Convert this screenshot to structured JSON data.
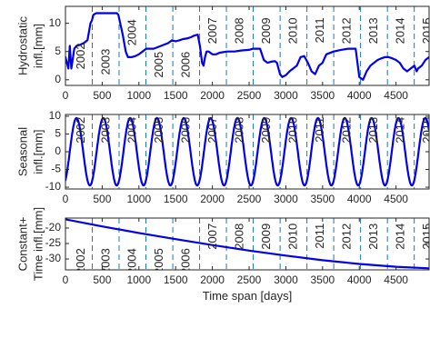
{
  "chart_data": [
    {
      "type": "line",
      "title": "",
      "xlabel": "",
      "ylabel_lines": [
        "Hydrostatic",
        "infl.[mm]"
      ],
      "xlim": [
        0,
        4950
      ],
      "ylim": [
        -1,
        13
      ],
      "xticks": [
        0,
        500,
        1000,
        1500,
        2000,
        2500,
        3000,
        3500,
        4000,
        4500
      ],
      "yticks": [
        0,
        5,
        10
      ],
      "grid": false,
      "year_dividers": [
        365,
        730,
        1095,
        1461,
        1826,
        2191,
        2556,
        2922,
        3287,
        3652,
        4017,
        4383,
        4748
      ],
      "year_labels": [
        {
          "text": "2002",
          "x": 215,
          "y_top": 6.5
        },
        {
          "text": "2003",
          "x": 560,
          "y_top": 5.5
        },
        {
          "text": "2004",
          "x": 915,
          "y_top": 10.7
        },
        {
          "text": "2005",
          "x": 1280,
          "y_top": 5.0
        },
        {
          "text": "2006",
          "x": 1645,
          "y_top": 5.0
        },
        {
          "text": "2007",
          "x": 2010,
          "y_top": 11.0
        },
        {
          "text": "2008",
          "x": 2375,
          "y_top": 11.0
        },
        {
          "text": "2009",
          "x": 2740,
          "y_top": 11.0
        },
        {
          "text": "2010",
          "x": 3105,
          "y_top": 11.0
        },
        {
          "text": "2011",
          "x": 3470,
          "y_top": 11.0
        },
        {
          "text": "2012",
          "x": 3835,
          "y_top": 11.0
        },
        {
          "text": "2013",
          "x": 4200,
          "y_top": 11.0
        },
        {
          "text": "2014",
          "x": 4565,
          "y_top": 11.0
        },
        {
          "text": "2015",
          "x": 4930,
          "y_top": 11.0
        }
      ],
      "series": [
        {
          "x": [
            0,
            40,
            60,
            80,
            120,
            150,
            200,
            250,
            300,
            340,
            360,
            380,
            420,
            450,
            470,
            700,
            720,
            780,
            820,
            850,
            900,
            950,
            1000,
            1100,
            1200,
            1300,
            1400,
            1450,
            1500,
            1550,
            1600,
            1650,
            1700,
            1750,
            1800,
            1830,
            1860,
            1880,
            1900,
            1920,
            1950,
            2000,
            2050,
            2100,
            2200,
            2300,
            2400,
            2500,
            2550,
            2650,
            2700,
            2750,
            2800,
            2850,
            2880,
            2900,
            2920,
            2950,
            3000,
            3050,
            3100,
            3150,
            3200,
            3250,
            3300,
            3350,
            3400,
            3450,
            3500,
            3550,
            3650,
            3750,
            3850,
            3950,
            4000,
            4050,
            4100,
            4150,
            4200,
            4250,
            4300,
            4350,
            4400,
            4450,
            4500,
            4550,
            4600,
            4650,
            4700,
            4750,
            4780,
            4800,
            4850,
            4900,
            4950
          ],
          "y": [
            4.0,
            2.0,
            6.0,
            2.0,
            5.5,
            6.0,
            6.2,
            6.5,
            7.0,
            10.0,
            10.5,
            11.5,
            11.8,
            11.8,
            11.8,
            11.8,
            11.5,
            8.0,
            5.0,
            4.0,
            4.0,
            4.2,
            4.5,
            5.5,
            5.5,
            6.0,
            6.5,
            7.0,
            6.8,
            7.0,
            7.2,
            7.3,
            7.5,
            7.8,
            8.0,
            6.0,
            3.0,
            2.5,
            4.0,
            5.0,
            5.0,
            4.5,
            4.5,
            4.8,
            5.0,
            5.0,
            5.2,
            5.3,
            5.5,
            5.5,
            3.5,
            3.0,
            3.2,
            3.3,
            3.0,
            2.0,
            1.0,
            0.5,
            0.8,
            1.5,
            2.0,
            2.5,
            4.0,
            4.2,
            3.0,
            1.5,
            1.0,
            2.5,
            3.0,
            4.5,
            5.0,
            5.3,
            5.5,
            5.5,
            0.5,
            0.0,
            1.5,
            2.5,
            3.0,
            3.5,
            3.8,
            4.0,
            4.0,
            3.8,
            3.5,
            3.0,
            2.0,
            1.5,
            2.0,
            2.5,
            1.5,
            2.0,
            2.5,
            3.5,
            4.0
          ]
        }
      ]
    },
    {
      "type": "line",
      "title": "",
      "xlabel": "",
      "ylabel_lines": [
        "Seasonal",
        "infl.[mm]"
      ],
      "xlim": [
        0,
        4950
      ],
      "ylim": [
        -10.5,
        10.5
      ],
      "xticks": [
        0,
        500,
        1000,
        1500,
        2000,
        2500,
        3000,
        3500,
        4000,
        4500
      ],
      "yticks": [
        -10,
        -5,
        0,
        5,
        10
      ],
      "grid": false,
      "year_dividers": [
        365,
        730,
        1095,
        1461,
        1826,
        2191,
        2556,
        2922,
        3287,
        3652,
        4017,
        4383,
        4748
      ],
      "year_labels": [
        {
          "text": "2002",
          "x": 215,
          "y_top": 9.8
        },
        {
          "text": "2003",
          "x": 560,
          "y_top": 9.8
        },
        {
          "text": "2004",
          "x": 915,
          "y_top": 9.8
        },
        {
          "text": "2005",
          "x": 1280,
          "y_top": 9.8
        },
        {
          "text": "2006",
          "x": 1645,
          "y_top": 9.8
        },
        {
          "text": "2007",
          "x": 2010,
          "y_top": 9.8
        },
        {
          "text": "2008",
          "x": 2375,
          "y_top": 9.8
        },
        {
          "text": "2009",
          "x": 2740,
          "y_top": 9.8
        },
        {
          "text": "2010",
          "x": 3105,
          "y_top": 9.8
        },
        {
          "text": "2011",
          "x": 3470,
          "y_top": 9.8
        },
        {
          "text": "2012",
          "x": 3835,
          "y_top": 9.8
        },
        {
          "text": "2013",
          "x": 4200,
          "y_top": 9.8
        },
        {
          "text": "2014",
          "x": 4565,
          "y_top": 9.8
        },
        {
          "text": "2015",
          "x": 4930,
          "y_top": 9.8
        }
      ],
      "series": [
        {
          "model": "sinusoid",
          "amplitude": 9.5,
          "period_days": 365.25,
          "peak_day": 150,
          "x_start": 0,
          "x_end": 4950
        }
      ]
    },
    {
      "type": "line",
      "title": "",
      "xlabel": "Time span [days]",
      "ylabel_lines": [
        "Constant+",
        "Time infl.[mm]"
      ],
      "xlim": [
        0,
        4950
      ],
      "ylim": [
        -33.5,
        -16.8
      ],
      "xticks": [
        0,
        500,
        1000,
        1500,
        2000,
        2500,
        3000,
        3500,
        4000,
        4500
      ],
      "yticks": [
        -30,
        -25,
        -20
      ],
      "grid": false,
      "year_dividers": [
        365,
        730,
        1095,
        1461,
        1826,
        2191,
        2556,
        2922,
        3287,
        3652,
        4017,
        4383,
        4748
      ],
      "year_labels": [
        {
          "text": "2002",
          "x": 215,
          "y_top": -26.5
        },
        {
          "text": "2003",
          "x": 560,
          "y_top": -26.5
        },
        {
          "text": "2004",
          "x": 915,
          "y_top": -26.5
        },
        {
          "text": "2005",
          "x": 1280,
          "y_top": -26.5
        },
        {
          "text": "2006",
          "x": 1645,
          "y_top": -26.5
        },
        {
          "text": "2007",
          "x": 2010,
          "y_top": -18.5
        },
        {
          "text": "2008",
          "x": 2375,
          "y_top": -18.5
        },
        {
          "text": "2009",
          "x": 2740,
          "y_top": -18.5
        },
        {
          "text": "2010",
          "x": 3105,
          "y_top": -18.5
        },
        {
          "text": "2011",
          "x": 3470,
          "y_top": -18.5
        },
        {
          "text": "2012",
          "x": 3835,
          "y_top": -18.5
        },
        {
          "text": "2013",
          "x": 4200,
          "y_top": -18.5
        },
        {
          "text": "2014",
          "x": 4565,
          "y_top": -18.5
        },
        {
          "text": "2015",
          "x": 4930,
          "y_top": -18.5
        }
      ],
      "series": [
        {
          "x": [
            0,
            500,
            1000,
            1500,
            2000,
            2500,
            3000,
            3500,
            4000,
            4500,
            4950
          ],
          "y": [
            -17.2,
            -19.5,
            -21.6,
            -23.6,
            -25.5,
            -27.3,
            -28.9,
            -30.4,
            -31.6,
            -32.5,
            -33.0
          ]
        }
      ]
    }
  ],
  "style": {
    "line_color": "#0000ee",
    "divider_color": "#1f77b4",
    "axis_color": "#262626"
  }
}
